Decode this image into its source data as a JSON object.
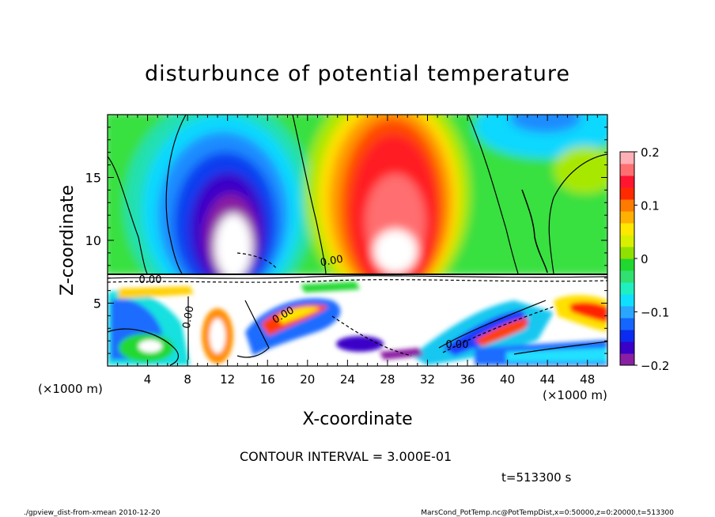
{
  "chart_data": {
    "type": "heatmap",
    "title": "disturbunce of potential temperature",
    "xlabel": "X-coordinate",
    "ylabel": "Z-coordinate",
    "x_unit": "(×1000 m)",
    "y_unit": "(×1000 m)",
    "xlim": [
      0,
      50
    ],
    "ylim": [
      0,
      20
    ],
    "x_ticks": [
      4,
      8,
      12,
      16,
      20,
      24,
      28,
      32,
      36,
      40,
      44,
      48
    ],
    "y_ticks": [
      5,
      10,
      15
    ],
    "colorbar": {
      "min": -0.2,
      "max": 0.2,
      "tick_values": [
        0.2,
        0.1,
        0,
        -0.1,
        -0.2
      ],
      "tick_labels": [
        "0.2",
        "0.1",
        "0",
        "−0.1",
        "−0.2"
      ],
      "colors": [
        "#8a1fa3",
        "#3a00c8",
        "#0a2cf0",
        "#1466ff",
        "#2aa6ff",
        "#10e0ff",
        "#20f0c0",
        "#30e070",
        "#20d830",
        "#90e000",
        "#d8f000",
        "#ffe800",
        "#ffb000",
        "#ff7a00",
        "#ff2a00",
        "#ff1530",
        "#ff6e70",
        "#ffb0b6"
      ]
    },
    "contour_labels": [
      "0.00",
      "0.00",
      "0.00",
      "0.00",
      "0.00"
    ],
    "contour_interval": "CONTOUR INTERVAL = 3.000E-01",
    "time_label": "t=513300 s"
  },
  "footer": {
    "left": "./gpview_dist-from-xmean  2010-12-20",
    "right": "MarsCond_PotTemp.nc@PotTempDist,x=0:50000,z=0:20000,t=513300"
  }
}
